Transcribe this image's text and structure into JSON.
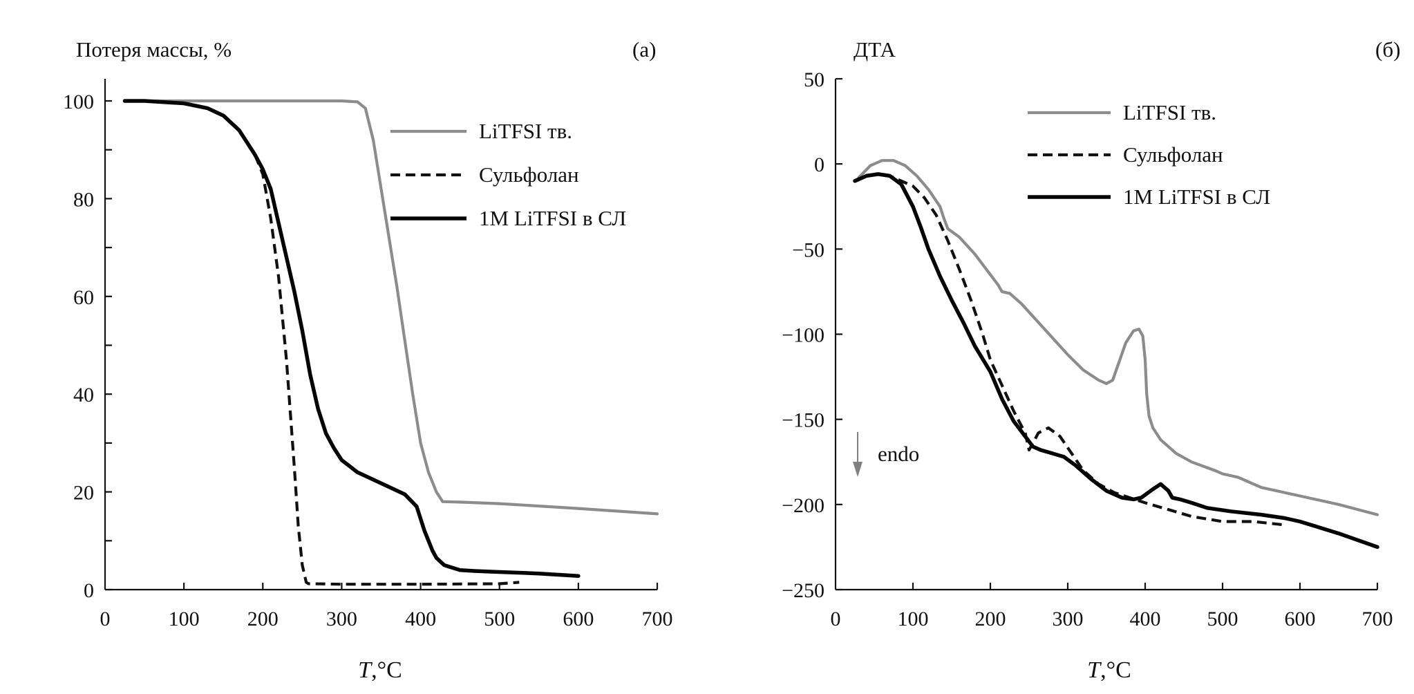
{
  "figure": {
    "panels": [
      "a",
      "b"
    ]
  },
  "legend_entries": [
    "LiTFSI тв.",
    "Сульфолан",
    "1M LiTFSI в СЛ"
  ],
  "colors": {
    "litfsi_solid": "#8c8c8c",
    "sulfolane": "#111111",
    "solution": "#050505",
    "endo_arrow": "#808080"
  },
  "chart_data": [
    {
      "type": "line",
      "panel_label": "(a)",
      "title": "Потеря массы, %",
      "xlabel": "T,°C",
      "ylabel": "Потеря массы, %",
      "xlim": [
        0,
        700
      ],
      "ylim": [
        0,
        100
      ],
      "xticks": [
        0,
        100,
        200,
        300,
        400,
        500,
        600,
        700
      ],
      "xtick_labels": [
        "0",
        "100",
        "200",
        "300",
        "400",
        "500",
        "600",
        "700"
      ],
      "yticks": [
        0,
        20,
        40,
        60,
        80,
        100
      ],
      "ytick_labels": [
        "0",
        "20",
        "40",
        "60",
        "80",
        "100"
      ],
      "yminor_ticks": [
        10,
        30,
        50,
        70,
        90
      ],
      "grid": false,
      "legend_position": "top-right",
      "series": [
        {
          "name": "LiTFSI тв.",
          "style": "solid-gray",
          "x": [
            25,
            50,
            100,
            200,
            300,
            320,
            330,
            340,
            350,
            360,
            370,
            380,
            390,
            400,
            410,
            420,
            428,
            450,
            500,
            600,
            700
          ],
          "y": [
            100,
            100,
            100,
            100,
            100,
            99.8,
            98.5,
            92,
            82,
            72,
            62,
            51,
            40,
            30,
            24,
            20,
            18,
            17.9,
            17.6,
            16.6,
            15.5
          ]
        },
        {
          "name": "Сульфолан",
          "style": "dashed-black",
          "x": [
            25,
            50,
            100,
            130,
            150,
            170,
            190,
            200,
            210,
            220,
            230,
            240,
            245,
            250,
            255,
            258,
            265,
            300,
            400,
            500,
            525
          ],
          "y": [
            100,
            100,
            99.5,
            98.5,
            97,
            94,
            89,
            85,
            76,
            64,
            47,
            25,
            13,
            5,
            1.5,
            1.2,
            1.2,
            1.1,
            1.1,
            1.2,
            1.5
          ]
        },
        {
          "name": "1M LiTFSI в СЛ",
          "style": "solid-black",
          "x": [
            25,
            50,
            100,
            130,
            150,
            170,
            190,
            200,
            210,
            220,
            230,
            240,
            250,
            260,
            270,
            280,
            290,
            300,
            320,
            340,
            360,
            380,
            395,
            405,
            415,
            420,
            430,
            450,
            470,
            500,
            550,
            600
          ],
          "y": [
            100,
            100,
            99.5,
            98.5,
            97,
            94,
            89,
            86,
            82,
            75,
            68,
            61,
            53,
            44,
            37,
            32,
            29,
            26.5,
            24,
            22.5,
            21,
            19.5,
            17,
            12,
            8,
            6.5,
            5,
            4,
            3.8,
            3.6,
            3.3,
            2.8
          ]
        }
      ]
    },
    {
      "type": "line",
      "panel_label": "(б)",
      "title": "ДТА",
      "xlabel": "T,°C",
      "ylabel": "ДТА",
      "xlim": [
        0,
        700
      ],
      "ylim": [
        -250,
        50
      ],
      "xticks": [
        0,
        100,
        200,
        300,
        400,
        500,
        600,
        700
      ],
      "xtick_labels": [
        "0",
        "100",
        "200",
        "300",
        "400",
        "500",
        "600",
        "700"
      ],
      "yticks": [
        -250,
        -200,
        -150,
        -100,
        -50,
        0,
        50
      ],
      "ytick_labels": [
        "−250",
        "−200",
        "−150",
        "−100",
        "−50",
        "0",
        "50"
      ],
      "grid": false,
      "legend_position": "top-center",
      "annotation": "endo",
      "series": [
        {
          "name": "LiTFSI тв.",
          "style": "solid-gray",
          "x": [
            30,
            45,
            60,
            75,
            90,
            105,
            120,
            135,
            140,
            145,
            160,
            180,
            200,
            210,
            215,
            225,
            240,
            260,
            280,
            300,
            320,
            340,
            350,
            358,
            365,
            375,
            385,
            392,
            397,
            400,
            402,
            405,
            410,
            420,
            440,
            460,
            490,
            500,
            520,
            550,
            600,
            650,
            700
          ],
          "y": [
            -8,
            -1,
            2,
            2,
            -1,
            -7,
            -15,
            -25,
            -32,
            -38,
            -43,
            -53,
            -65,
            -71,
            -75,
            -76,
            -82,
            -92,
            -102,
            -112,
            -121,
            -127,
            -129,
            -127,
            -118,
            -105,
            -98,
            -97,
            -101,
            -115,
            -135,
            -148,
            -155,
            -162,
            -170,
            -175,
            -180,
            -182,
            -184,
            -190,
            -195,
            -200,
            -206
          ]
        },
        {
          "name": "Сульфолан",
          "style": "dashed-black",
          "x": [
            25,
            40,
            55,
            70,
            85,
            100,
            115,
            130,
            145,
            160,
            175,
            190,
            200,
            215,
            230,
            245,
            250,
            255,
            262,
            275,
            290,
            305,
            320,
            340,
            360,
            380,
            400,
            430,
            460,
            500,
            540,
            580
          ],
          "y": [
            -10,
            -7,
            -6,
            -7,
            -10,
            -13,
            -20,
            -30,
            -45,
            -62,
            -80,
            -100,
            -115,
            -130,
            -145,
            -158,
            -168,
            -164,
            -158,
            -155,
            -160,
            -170,
            -180,
            -188,
            -193,
            -196,
            -199,
            -203,
            -207,
            -210,
            -210,
            -212
          ]
        },
        {
          "name": "1M LiTFSI в СЛ",
          "style": "solid-black",
          "x": [
            25,
            40,
            55,
            70,
            85,
            100,
            110,
            120,
            135,
            150,
            165,
            180,
            200,
            215,
            230,
            245,
            255,
            265,
            280,
            295,
            310,
            330,
            350,
            370,
            385,
            395,
            410,
            420,
            430,
            435,
            445,
            460,
            480,
            510,
            550,
            580,
            600,
            650,
            700
          ],
          "y": [
            -10,
            -7,
            -6,
            -7,
            -12,
            -25,
            -37,
            -50,
            -66,
            -80,
            -93,
            -107,
            -122,
            -138,
            -151,
            -160,
            -166,
            -168,
            -170,
            -172,
            -177,
            -185,
            -192,
            -196,
            -197,
            -196,
            -191,
            -188,
            -192,
            -196,
            -197,
            -199,
            -202,
            -204,
            -206,
            -208,
            -210,
            -217,
            -225
          ]
        }
      ]
    }
  ]
}
